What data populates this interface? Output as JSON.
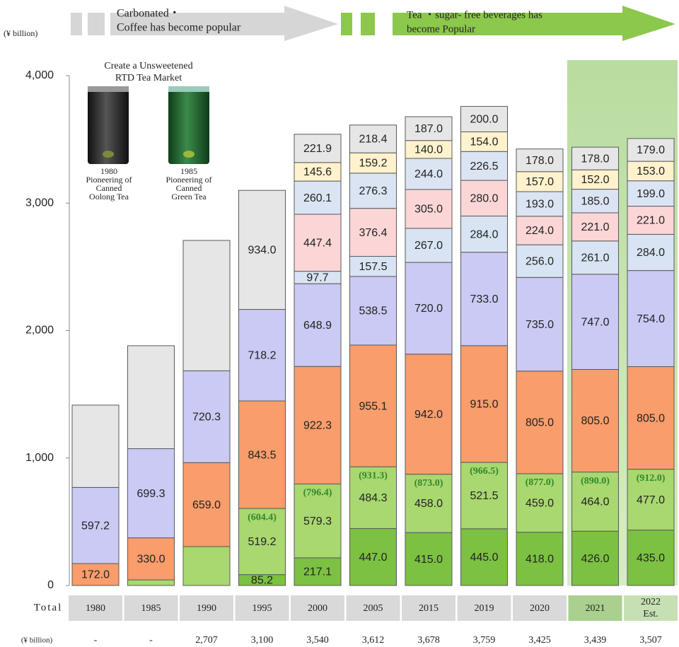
{
  "chart_data": {
    "type": "stacked_bar",
    "y_unit": "(¥ billion)",
    "eras": [
      {
        "lines": [
          "Carbonated・",
          "Coffee has become popular"
        ]
      },
      {
        "lines": [
          "Tea ・sugar- free beverages has",
          "become Popular"
        ]
      }
    ],
    "annotation": {
      "lines": [
        "Create a Unsweetened",
        "RTD Tea Market"
      ]
    },
    "products": [
      {
        "lines": [
          "1980",
          "Pioneering of",
          "Canned",
          "Oolong Tea"
        ]
      },
      {
        "lines": [
          "1985",
          "Pioneering of",
          "Canned",
          "Green Tea"
        ]
      }
    ],
    "categories": [
      "1980",
      "1985",
      "1990",
      "1995",
      "2000",
      "2005",
      "2015",
      "2019",
      "2020",
      "2021",
      "2022 Est."
    ],
    "ylim": [
      0,
      4000
    ],
    "yticks": [
      0,
      {
        "value": 1000,
        "label": "1,000"
      },
      {
        "value": 2000,
        "label": "2,000"
      },
      {
        "value": 3000,
        "label": "3,000"
      },
      {
        "value": 4000,
        "label": "4,000"
      }
    ],
    "series": [
      {
        "color": "#7cc142",
        "values": [
          null,
          null,
          null,
          85.2,
          217.1,
          447.0,
          415.0,
          445.0,
          418.0,
          426.0,
          435.0
        ],
        "value_labels": [
          null,
          null,
          null,
          "85.2",
          "217.1",
          "447.0",
          "415.0",
          "445.0",
          "418.0",
          "426.0",
          "435.0"
        ]
      },
      {
        "color": "#a9d770",
        "values": [
          null,
          44,
          305,
          519.2,
          579.3,
          484.3,
          458.0,
          521.5,
          459.0,
          464.0,
          477.0
        ],
        "value_labels": [
          null,
          null,
          null,
          "519.2",
          "579.3",
          "484.3",
          "458.0",
          "521.5",
          "459.0",
          "464.0",
          "477.0"
        ]
      },
      {
        "color": "#f89d6b",
        "values": [
          172.0,
          330.0,
          659.0,
          843.5,
          922.3,
          955.1,
          942.0,
          915.0,
          805.0,
          805.0,
          805.0
        ],
        "value_labels": [
          "172.0",
          "330.0",
          "659.0",
          "843.5",
          "922.3",
          "955.1",
          "942.0",
          "915.0",
          "805.0",
          "805.0",
          "805.0"
        ]
      },
      {
        "color": "#cacaf4",
        "values": [
          597.2,
          699.3,
          720.3,
          718.2,
          648.9,
          538.5,
          720.0,
          733.0,
          735.0,
          747.0,
          754.0
        ],
        "value_labels": [
          "597.2",
          "699.3",
          "720.3",
          "718.2",
          "648.9",
          "538.5",
          "720.0",
          "733.0",
          "735.0",
          "747.0",
          "754.0"
        ]
      },
      {
        "color": "#d8e4f3",
        "values": [
          null,
          null,
          null,
          null,
          97.7,
          157.5,
          267.0,
          284.0,
          256.0,
          261.0,
          284.0
        ],
        "value_labels": [
          null,
          null,
          null,
          null,
          "97.7",
          "157.5",
          "267.0",
          "284.0",
          "256.0",
          "261.0",
          "284.0"
        ]
      },
      {
        "color": "#fcd6d6",
        "values": [
          null,
          null,
          null,
          null,
          447.4,
          376.4,
          305.0,
          280.0,
          224.0,
          221.0,
          221.0
        ],
        "value_labels": [
          null,
          null,
          null,
          null,
          "447.4",
          "376.4",
          "305.0",
          "280.0",
          "224.0",
          "221.0",
          "221.0"
        ]
      },
      {
        "color": "#dbe4f3",
        "values": [
          null,
          null,
          null,
          null,
          260.1,
          276.3,
          244.0,
          226.5,
          193.0,
          185.0,
          199.0
        ],
        "value_labels": [
          null,
          null,
          null,
          null,
          "260.1",
          "276.3",
          "244.0",
          "226.5",
          "193.0",
          "185.0",
          "199.0"
        ]
      },
      {
        "color": "#fff2cc",
        "values": [
          null,
          null,
          null,
          null,
          145.6,
          159.2,
          140.0,
          154.0,
          157.0,
          152.0,
          153.0
        ],
        "value_labels": [
          null,
          null,
          null,
          null,
          "145.6",
          "159.2",
          "140.0",
          "154.0",
          "157.0",
          "152.0",
          "153.0"
        ]
      },
      {
        "color": "#e6e6e6",
        "values": [
          646,
          808,
          1023,
          934.0,
          221.9,
          218.4,
          187.0,
          200.0,
          178.0,
          178.0,
          179.0
        ],
        "value_labels": [
          null,
          null,
          null,
          "934.0",
          "221.9",
          "218.4",
          "187.0",
          "200.0",
          "178.0",
          "178.0",
          "179.0"
        ]
      }
    ],
    "subtotals": {
      "color": "#2f8a2a",
      "values": [
        null,
        null,
        null,
        604.4,
        796.4,
        931.3,
        873.0,
        966.5,
        877.0,
        890.0,
        912.0
      ],
      "value_labels": [
        null,
        null,
        null,
        "(604.4)",
        "(796.4)",
        "(931.3)",
        "(873.0)",
        "(966.5)",
        "(877.0)",
        "(890.0)",
        "(912.0)"
      ]
    },
    "totals": {
      "label": "Total",
      "unit": "(¥ billion)",
      "values": [
        null,
        null,
        2707,
        3100,
        3540,
        3612,
        3678,
        3759,
        3425,
        3439,
        3507
      ],
      "value_labels": [
        "-",
        "-",
        "2,707",
        "3,100",
        "3,540",
        "3,612",
        "3,678",
        "3,759",
        "3,425",
        "3,439",
        "3,507"
      ]
    }
  }
}
